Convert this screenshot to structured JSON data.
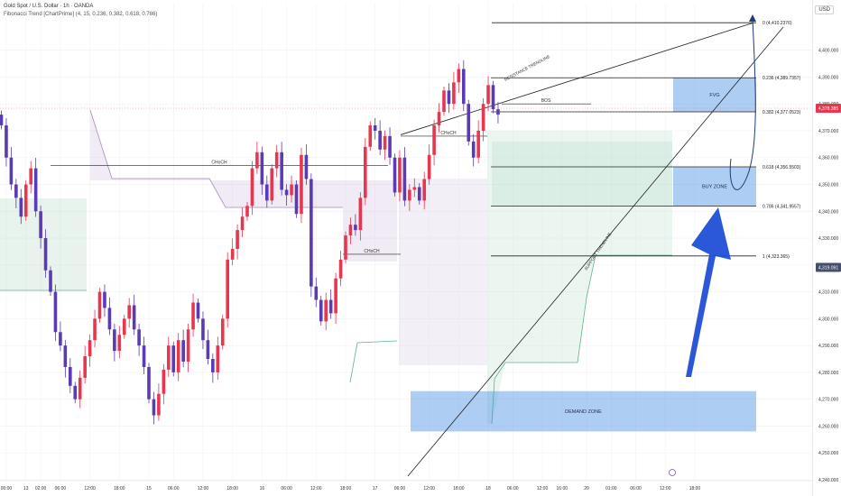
{
  "header": {
    "title": "Gold Spot / U.S. Dollar · 1h · OANDA",
    "indicator": "Fibonacci Trend [ChartPrime] (4, 15, 0.236, 0.382, 0.618, 0.786)",
    "unit": "USD"
  },
  "colors": {
    "bull": "#e8364f",
    "bear": "#5b3bb3",
    "zone": "#4a90e2",
    "arrow": "#1f4fd6",
    "line": "#222222"
  },
  "chart_data": {
    "type": "candlestick",
    "ylim": [
      4240,
      4415
    ],
    "y_ticks": [
      "4,240.000",
      "4,250.000",
      "4,260.000",
      "4,270.000",
      "4,280.000",
      "4,290.000",
      "4,300.000",
      "4,310.000",
      "4,320.000",
      "4,330.000",
      "4,340.000",
      "4,350.000",
      "4,360.000",
      "4,370.000",
      "4,380.000",
      "4,390.000",
      "4,400.000"
    ],
    "y_tick_values": [
      4240,
      4250,
      4260,
      4270,
      4280,
      4290,
      4300,
      4310,
      4320,
      4330,
      4340,
      4350,
      4360,
      4370,
      4380,
      4390,
      4400
    ],
    "x_ticks": [
      {
        "label": "00:00",
        "i": 1
      },
      {
        "label": "13",
        "i": 5
      },
      {
        "label": "02:00",
        "i": 8
      },
      {
        "label": "06:00",
        "i": 12
      },
      {
        "label": "12:00",
        "i": 18
      },
      {
        "label": "18:00",
        "i": 24
      },
      {
        "label": "15",
        "i": 30
      },
      {
        "label": "06:00",
        "i": 35
      },
      {
        "label": "12:00",
        "i": 41
      },
      {
        "label": "18:00",
        "i": 47
      },
      {
        "label": "16",
        "i": 53
      },
      {
        "label": "06:00",
        "i": 58
      },
      {
        "label": "12:00",
        "i": 64
      },
      {
        "label": "18:00",
        "i": 70
      },
      {
        "label": "17",
        "i": 76
      },
      {
        "label": "06:00",
        "i": 81
      },
      {
        "label": "12:00",
        "i": 87
      },
      {
        "label": "18:00",
        "i": 93
      },
      {
        "label": "18",
        "i": 99
      },
      {
        "label": "06:00",
        "i": 104
      },
      {
        "label": "12:00",
        "i": 110
      },
      {
        "label": "16:00",
        "i": 114
      },
      {
        "label": "20",
        "i": 119
      },
      {
        "label": "01:00",
        "i": 124
      },
      {
        "label": "06:00",
        "i": 129
      },
      {
        "label": "12:00",
        "i": 135
      },
      {
        "label": "18:00",
        "i": 141
      }
    ],
    "closes": [
      4372,
      4360,
      4350,
      4345,
      4338,
      4350,
      4356,
      4340,
      4330,
      4318,
      4310,
      4295,
      4290,
      4282,
      4275,
      4270,
      4278,
      4286,
      4292,
      4300,
      4310,
      4304,
      4296,
      4288,
      4294,
      4300,
      4305,
      4296,
      4290,
      4282,
      4270,
      4264,
      4272,
      4281,
      4290,
      4280,
      4292,
      4284,
      4296,
      4306,
      4300,
      4292,
      4285,
      4280,
      4290,
      4300,
      4322,
      4326,
      4333,
      4338,
      4342,
      4356,
      4362,
      4350,
      4344,
      4356,
      4362,
      4348,
      4346,
      4350,
      4339,
      4361,
      4352,
      4312,
      4307,
      4299,
      4307,
      4302,
      4315,
      4322,
      4331,
      4335,
      4333,
      4345,
      4364,
      4372,
      4370,
      4363,
      4368,
      4360,
      4347,
      4360,
      4344,
      4348,
      4349,
      4344,
      4352,
      4361,
      4372,
      4377,
      4385,
      4380,
      4388,
      4393,
      4380,
      4366,
      4360,
      4370,
      4380,
      4387,
      4378,
      4376
    ],
    "current_price": "4,378.385",
    "secondary_price": "4,319.091",
    "fibonacci": [
      {
        "label": "0 (4,410.2376)",
        "value": 4410.2376
      },
      {
        "label": "0.236 (4,389.7357)",
        "value": 4389.7357
      },
      {
        "label": "0.382 (4,377.0523)",
        "value": 4377.0523
      },
      {
        "label": "0.618 (4,356.5503)",
        "value": 4356.5503
      },
      {
        "label": "0.786 (4,341.9557)",
        "value": 4341.9557
      },
      {
        "label": "1 (4,323.365)",
        "value": 4323.365
      }
    ],
    "zones": [
      {
        "label": "FVG",
        "from": 4377,
        "to": 4389.7
      },
      {
        "label": "BUY ZONE",
        "from": 4342,
        "to": 4356.5
      },
      {
        "label": "DEMAND ZONE",
        "from": 4258,
        "to": 4273
      }
    ],
    "annotations": [
      "RESISTANCE TRENDLINE",
      "SUPPORT TRENDLINE",
      "BOS",
      "CHoCH",
      "CHoCH",
      "CHoCH"
    ]
  }
}
